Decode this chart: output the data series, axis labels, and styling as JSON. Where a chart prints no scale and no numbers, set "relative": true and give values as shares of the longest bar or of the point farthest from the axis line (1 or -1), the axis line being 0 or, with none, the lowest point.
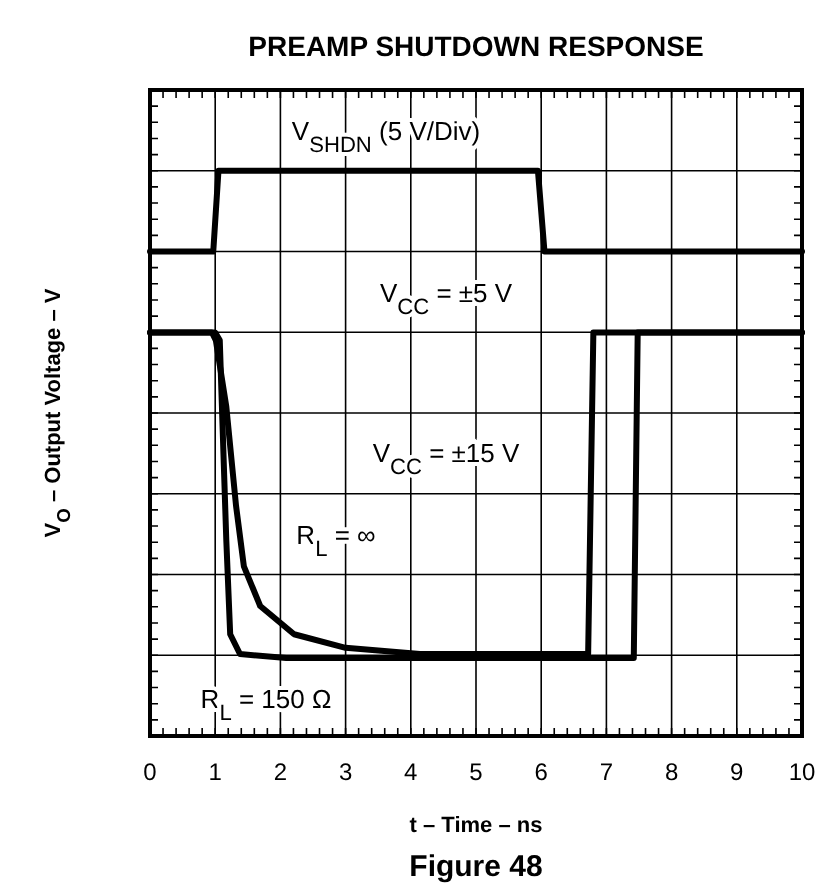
{
  "chart_data": {
    "type": "line",
    "title": "PREAMP SHUTDOWN RESPONSE",
    "xlabel": "t – Time – ns",
    "ylabel": "V$_{O}$ – Output Voltage – V",
    "relative": true,
    "xlim": [
      0,
      10
    ],
    "xticks": [
      0,
      1,
      2,
      3,
      4,
      5,
      6,
      7,
      8,
      9,
      10
    ],
    "tick_labels": "x",
    "grid": true,
    "marker": "none",
    "line_style": "solid",
    "series": [
      {
        "color": "#000000",
        "x": [
          0,
          0.97,
          1.05,
          5.95,
          6.05,
          10
        ],
        "values": [
          0.857,
          0.857,
          1,
          1,
          0.857,
          0.857
        ]
      },
      {
        "color": "#000000",
        "x": [
          0,
          0.95,
          1.01,
          1.17,
          1.32,
          1.44,
          1.69,
          2.21,
          3.0,
          4.14,
          6.72,
          6.8,
          10
        ],
        "values": [
          0.714,
          0.714,
          0.7,
          0.583,
          0.407,
          0.3,
          0.23,
          0.18,
          0.156,
          0.145,
          0.145,
          0.714,
          0.714
        ]
      },
      {
        "color": "#000000",
        "x": [
          0,
          1.0,
          1.07,
          1.17,
          1.23,
          1.38,
          2.09,
          7.42,
          7.48,
          10
        ],
        "values": [
          0.714,
          0.714,
          0.7,
          0.347,
          0.18,
          0.145,
          0.138,
          0.138,
          0.714,
          0.714
        ]
      }
    ],
    "annotations": [
      "V$_{SHDN}$ (5 V/Div)",
      "V$_{CC}$ = ±5 V",
      "V$_{CC}$ = ±15 V",
      "R$_{L}$ = ∞",
      "R$_{L}$ = 150 Ω",
      "Figure 48"
    ]
  }
}
